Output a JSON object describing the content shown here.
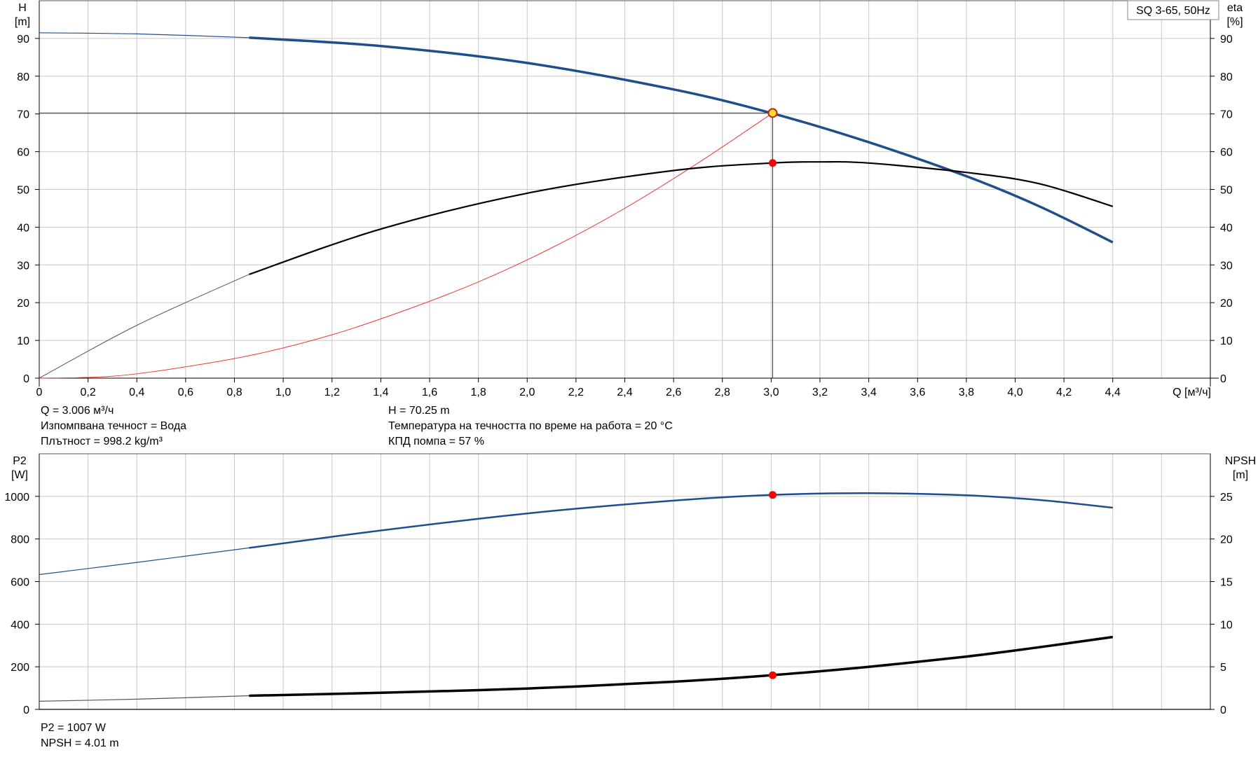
{
  "legend_box": "SQ 3-65, 50Hz",
  "colors": {
    "head": "#1f4e8c",
    "eta": "#000000",
    "system": "#e63a32",
    "p2": "#1f4e8c",
    "npsh": "#000000",
    "grid": "#c8c8c8",
    "marker": "#ff0000",
    "duty_marker": "#ffe030"
  },
  "info_top": {
    "q": "Q = 3.006 м³/ч",
    "liquid": "Изпомпвана течност = Вода",
    "density": "Плътност = 998.2 kg/m³",
    "h": "H = 70.25 m",
    "temp": "Температура на течността по време на работа = 20 °C",
    "eff": "КПД помпа = 57 %"
  },
  "info_bottom": {
    "p2": "P2 = 1007 W",
    "npsh": "NPSH = 4.01 m"
  },
  "chart_data": [
    {
      "type": "line",
      "xlabel": "Q [м³/ч]",
      "ylabel_left": [
        "H",
        "[m]"
      ],
      "ylabel_right": [
        "eta",
        "[%]"
      ],
      "xlim": [
        0,
        4.8
      ],
      "ylim": [
        0,
        100
      ],
      "x_ticks": [
        "0",
        "0,2",
        "0,4",
        "0,6",
        "0,8",
        "1,0",
        "1,2",
        "1,4",
        "1,6",
        "1,8",
        "2,0",
        "2,2",
        "2,4",
        "2,6",
        "2,8",
        "3,0",
        "3,2",
        "3,4",
        "3,6",
        "3,8",
        "4,0",
        "4,2",
        "4,4"
      ],
      "y_ticks": [
        0,
        10,
        20,
        30,
        40,
        50,
        60,
        70,
        80,
        90
      ],
      "grid": true,
      "series": [
        {
          "name": "H",
          "axis": "left",
          "x": [
            0,
            0.4,
            0.86,
            1.4,
            2.0,
            2.6,
            3.0,
            3.4,
            3.8,
            4.1,
            4.4
          ],
          "y": [
            91.5,
            91.2,
            90.2,
            88.0,
            83.5,
            76.5,
            70.25,
            62.5,
            53.5,
            45.5,
            36.0
          ]
        },
        {
          "name": "eta",
          "axis": "right",
          "x": [
            0,
            0.4,
            0.86,
            1.4,
            2.0,
            2.6,
            3.0,
            3.2,
            3.4,
            3.8,
            4.1,
            4.4
          ],
          "y": [
            0,
            14.0,
            27.5,
            39.5,
            49.0,
            55.0,
            57.0,
            57.3,
            57.0,
            54.5,
            51.5,
            45.5
          ]
        },
        {
          "name": "system",
          "axis": "left",
          "x": [
            0,
            0.3,
            0.6,
            0.9,
            1.2,
            1.5,
            1.8,
            2.1,
            2.4,
            2.7,
            3.006
          ],
          "y": [
            0,
            0.5,
            3.0,
            6.5,
            11.5,
            18.0,
            25.5,
            34.5,
            45.0,
            57.0,
            70.25
          ]
        }
      ],
      "operating_point": {
        "q": 3.006,
        "h": 70.25,
        "eta": 57
      },
      "reference_line": {
        "q": 3.006,
        "h": 70.25
      }
    },
    {
      "type": "line",
      "ylabel_left": [
        "P2",
        "[W]"
      ],
      "ylabel_right": [
        "NPSH",
        "[m]"
      ],
      "xlim": [
        0,
        4.8
      ],
      "ylim_left": [
        0,
        1200
      ],
      "ylim_right": [
        0,
        30
      ],
      "y_ticks_left": [
        0,
        200,
        400,
        600,
        800,
        1000
      ],
      "y_ticks_right": [
        0,
        5,
        10,
        15,
        20,
        25
      ],
      "grid": true,
      "series": [
        {
          "name": "P2",
          "axis": "left",
          "x": [
            0,
            0.4,
            0.86,
            1.4,
            2.0,
            2.6,
            3.0,
            3.4,
            3.8,
            4.1,
            4.4
          ],
          "y": [
            633,
            690,
            758,
            840,
            920,
            980,
            1007,
            1015,
            1005,
            983,
            947
          ]
        },
        {
          "name": "NPSH",
          "axis": "right",
          "x": [
            0,
            0.4,
            0.86,
            1.4,
            2.0,
            2.6,
            3.0,
            3.4,
            3.8,
            4.1,
            4.4
          ],
          "y": [
            0.95,
            1.2,
            1.6,
            1.95,
            2.45,
            3.25,
            4.01,
            5.0,
            6.2,
            7.3,
            8.5
          ]
        }
      ],
      "operating_point": {
        "q": 3.006,
        "p2": 1007,
        "npsh": 4.01
      }
    }
  ]
}
